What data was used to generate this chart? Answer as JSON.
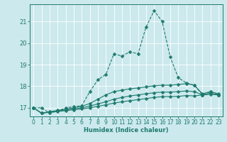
{
  "xlabel": "Humidex (Indice chaleur)",
  "background_color": "#cce9ed",
  "line_color": "#1e7a6e",
  "grid_color": "#ffffff",
  "x_values": [
    0,
    1,
    2,
    3,
    4,
    5,
    6,
    7,
    8,
    9,
    10,
    11,
    12,
    13,
    14,
    15,
    16,
    17,
    18,
    19,
    20,
    21,
    22,
    23
  ],
  "series": [
    {
      "y": [
        17.0,
        17.0,
        16.75,
        16.85,
        17.0,
        17.05,
        17.1,
        17.75,
        18.3,
        18.55,
        19.5,
        19.4,
        19.6,
        19.5,
        20.75,
        21.5,
        21.0,
        19.35,
        18.4,
        18.15,
        18.05,
        17.6,
        17.75,
        17.6
      ],
      "linestyle": "--",
      "marker": true
    },
    {
      "y": [
        17.0,
        16.75,
        16.82,
        16.88,
        16.94,
        17.0,
        17.07,
        17.2,
        17.4,
        17.6,
        17.75,
        17.82,
        17.88,
        17.92,
        17.97,
        18.02,
        18.05,
        18.05,
        18.08,
        18.12,
        18.05,
        17.65,
        17.75,
        17.65
      ],
      "linestyle": "-",
      "marker": true
    },
    {
      "y": [
        17.0,
        16.75,
        16.8,
        16.85,
        16.9,
        16.95,
        17.0,
        17.08,
        17.18,
        17.28,
        17.4,
        17.48,
        17.55,
        17.6,
        17.65,
        17.7,
        17.73,
        17.73,
        17.75,
        17.78,
        17.75,
        17.6,
        17.68,
        17.6
      ],
      "linestyle": "-",
      "marker": true
    },
    {
      "y": [
        17.0,
        16.75,
        16.79,
        16.83,
        16.87,
        16.91,
        16.95,
        17.0,
        17.07,
        17.14,
        17.22,
        17.28,
        17.33,
        17.38,
        17.43,
        17.48,
        17.52,
        17.52,
        17.53,
        17.57,
        17.55,
        17.6,
        17.62,
        17.6
      ],
      "linestyle": "-",
      "marker": true
    }
  ],
  "ylim": [
    16.6,
    21.8
  ],
  "yticks": [
    17,
    18,
    19,
    20,
    21
  ],
  "xticks": [
    0,
    1,
    2,
    3,
    4,
    5,
    6,
    7,
    8,
    9,
    10,
    11,
    12,
    13,
    14,
    15,
    16,
    17,
    18,
    19,
    20,
    21,
    22,
    23
  ],
  "markersize": 2.5,
  "linewidth": 0.8,
  "tick_fontsize": 5.5,
  "label_fontsize": 6.0
}
